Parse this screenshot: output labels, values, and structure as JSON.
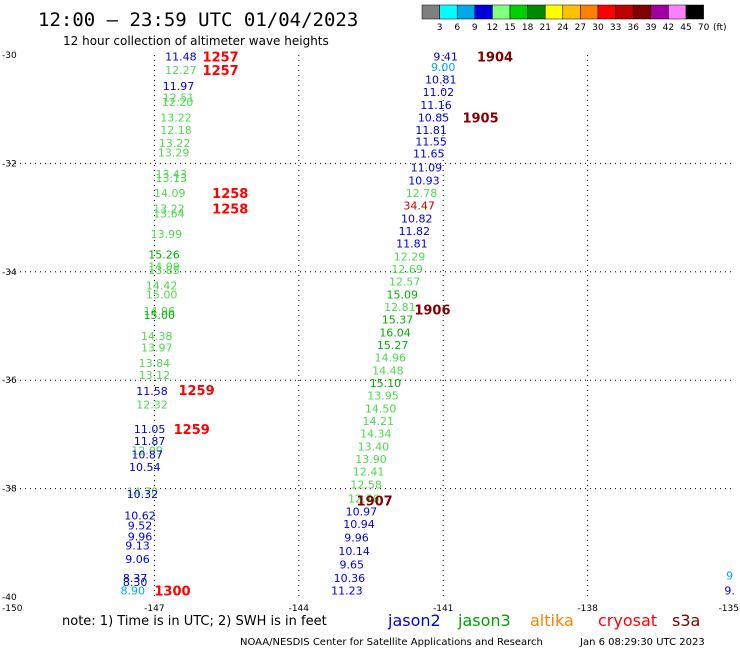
{
  "title": "12:00 — 23:59 UTC 01/04/2023",
  "subtitle": "12 hour collection of altimeter wave heights",
  "note": "note:  1) Time is in UTC; 2) SWH is in feet",
  "credit": "NOAA/NESDIS Center for Satellite Applications and Research",
  "timestamp": "Jan  6 08:29:30 UTC 2023",
  "colorscale": {
    "labels": [
      "3",
      "6",
      "9",
      "12",
      "15",
      "18",
      "21",
      "24",
      "27",
      "30",
      "33",
      "36",
      "39",
      "42",
      "45",
      "70"
    ],
    "unit": "(ft)",
    "colors": [
      "#7f7f7f",
      "#00ffff",
      "#00a8e8",
      "#0000d8",
      "#80ff80",
      "#00d000",
      "#008800",
      "#ffff00",
      "#ffc000",
      "#ff8000",
      "#ff0000",
      "#c00000",
      "#800000",
      "#a000a0",
      "#ff80ff",
      "#000000"
    ]
  },
  "satellites": [
    {
      "name": "jason2",
      "color": "#0000dd"
    },
    {
      "name": "jason3",
      "color": "#00a000"
    },
    {
      "name": "altika",
      "color": "#ff8000"
    },
    {
      "name": "cryosat",
      "color": "#ff0000"
    },
    {
      "name": "s3a",
      "color": "#800000"
    }
  ],
  "chart_data": {
    "type": "scatter",
    "x_ticks": [
      "-150",
      "-147",
      "-144",
      "-141",
      "-138",
      "-135"
    ],
    "y_ticks": [
      "-30",
      "-32",
      "-34",
      "-36",
      "-38",
      "-40"
    ],
    "xlim": [
      -150,
      -135
    ],
    "ylim": [
      -40,
      -30
    ],
    "grid": true,
    "time_labels": [
      {
        "text": "1257",
        "lon": -146.0,
        "lat": -30.03,
        "color": "#ff0000"
      },
      {
        "text": "1257",
        "lon": -146.0,
        "lat": -30.28,
        "color": "#ff0000"
      },
      {
        "text": "1258",
        "lon": -145.8,
        "lat": -32.55,
        "color": "#ff0000"
      },
      {
        "text": "1258",
        "lon": -145.8,
        "lat": -32.83,
        "color": "#ff0000"
      },
      {
        "text": "1259",
        "lon": -146.5,
        "lat": -36.18,
        "color": "#ff0000"
      },
      {
        "text": "1259",
        "lon": -146.6,
        "lat": -36.9,
        "color": "#ff0000"
      },
      {
        "text": "1300",
        "lon": -147.0,
        "lat": -39.88,
        "color": "#ff0000"
      },
      {
        "text": "1904",
        "lon": -140.3,
        "lat": -30.03,
        "color": "#800000"
      },
      {
        "text": "1905",
        "lon": -140.6,
        "lat": -31.15,
        "color": "#800000"
      },
      {
        "text": "1906",
        "lon": -141.6,
        "lat": -34.7,
        "color": "#800000"
      },
      {
        "text": "1907",
        "lon": -142.8,
        "lat": -38.22,
        "color": "#800000"
      }
    ],
    "series": [
      {
        "name": "track-1257",
        "points": [
          {
            "lon": -146.45,
            "lat": -30.03,
            "v": "11.48",
            "c": "#0000dd"
          },
          {
            "lon": -146.45,
            "lat": -30.28,
            "v": "12.27",
            "c": "#50d850"
          },
          {
            "lon": -146.5,
            "lat": -30.57,
            "v": "11.97",
            "c": "#0000dd"
          },
          {
            "lon": -146.5,
            "lat": -30.78,
            "v": "12.51",
            "c": "#50d850"
          },
          {
            "lon": -146.52,
            "lat": -30.87,
            "v": "12.20",
            "c": "#50d850"
          },
          {
            "lon": -146.55,
            "lat": -31.15,
            "v": "13.22",
            "c": "#50d850"
          },
          {
            "lon": -146.55,
            "lat": -31.38,
            "v": "12.18",
            "c": "#50d850"
          },
          {
            "lon": -146.58,
            "lat": -31.62,
            "v": "13.22",
            "c": "#50d850"
          },
          {
            "lon": -146.6,
            "lat": -31.8,
            "v": "13.29",
            "c": "#50d850"
          },
          {
            "lon": -146.65,
            "lat": -32.2,
            "v": "13.43",
            "c": "#50d850"
          },
          {
            "lon": -146.65,
            "lat": -32.27,
            "v": "13.13",
            "c": "#50d850"
          },
          {
            "lon": -146.68,
            "lat": -32.55,
            "v": "14.09",
            "c": "#50d850"
          },
          {
            "lon": -146.7,
            "lat": -32.83,
            "v": "13.22",
            "c": "#50d850"
          },
          {
            "lon": -146.7,
            "lat": -32.92,
            "v": "13.64",
            "c": "#50d850"
          },
          {
            "lon": -146.75,
            "lat": -33.3,
            "v": "13.99",
            "c": "#50d850"
          },
          {
            "lon": -146.8,
            "lat": -33.68,
            "v": "15.26",
            "c": "#00b000"
          },
          {
            "lon": -146.8,
            "lat": -33.9,
            "v": "14.09",
            "c": "#50d850"
          },
          {
            "lon": -146.8,
            "lat": -33.97,
            "v": "13.85",
            "c": "#50d850"
          },
          {
            "lon": -146.85,
            "lat": -34.25,
            "v": "14.42",
            "c": "#50d850"
          },
          {
            "lon": -146.85,
            "lat": -34.42,
            "v": "15.00",
            "c": "#50d850"
          },
          {
            "lon": -146.9,
            "lat": -34.72,
            "v": "14.96",
            "c": "#50d850"
          },
          {
            "lon": -146.9,
            "lat": -34.8,
            "v": "15.00",
            "c": "#00b000"
          },
          {
            "lon": -146.95,
            "lat": -35.18,
            "v": "14.38",
            "c": "#50d850"
          },
          {
            "lon": -146.95,
            "lat": -35.4,
            "v": "13.97",
            "c": "#50d850"
          },
          {
            "lon": -147.0,
            "lat": -35.68,
            "v": "13.84",
            "c": "#50d850"
          },
          {
            "lon": -147.0,
            "lat": -35.9,
            "v": "13.12",
            "c": "#50d850"
          },
          {
            "lon": -147.05,
            "lat": -36.2,
            "v": "11.58",
            "c": "#0000dd"
          },
          {
            "lon": -147.05,
            "lat": -36.45,
            "v": "12.32",
            "c": "#50d850"
          },
          {
            "lon": -147.1,
            "lat": -36.9,
            "v": "11.05",
            "c": "#0000dd"
          },
          {
            "lon": -147.1,
            "lat": -37.12,
            "v": "11.87",
            "c": "#0000dd"
          },
          {
            "lon": -147.15,
            "lat": -37.3,
            "v": "12.09",
            "c": "#50d850"
          },
          {
            "lon": -147.15,
            "lat": -37.37,
            "v": "10.87",
            "c": "#0000dd"
          },
          {
            "lon": -147.2,
            "lat": -37.6,
            "v": "10.54",
            "c": "#0000dd"
          },
          {
            "lon": -147.25,
            "lat": -38.05,
            "v": "14.70",
            "c": "#50d850"
          },
          {
            "lon": -147.25,
            "lat": -38.1,
            "v": "10.32",
            "c": "#0000dd"
          },
          {
            "lon": -147.3,
            "lat": -38.5,
            "v": "10.62",
            "c": "#0000dd"
          },
          {
            "lon": -147.3,
            "lat": -38.68,
            "v": "9.52",
            "c": "#0000dd"
          },
          {
            "lon": -147.3,
            "lat": -38.88,
            "v": "9.96",
            "c": "#0000dd"
          },
          {
            "lon": -147.35,
            "lat": -39.05,
            "v": "9.13",
            "c": "#0000dd"
          },
          {
            "lon": -147.35,
            "lat": -39.3,
            "v": "9.06",
            "c": "#0000dd"
          },
          {
            "lon": -147.4,
            "lat": -39.65,
            "v": "8.37",
            "c": "#0000dd"
          },
          {
            "lon": -147.4,
            "lat": -39.72,
            "v": "8.30",
            "c": "#0000dd"
          },
          {
            "lon": -147.45,
            "lat": -39.88,
            "v": "8.90",
            "c": "#00a8e8"
          }
        ]
      },
      {
        "name": "track-1904",
        "points": [
          {
            "lon": -140.95,
            "lat": -30.03,
            "v": "9.41",
            "c": "#0000dd"
          },
          {
            "lon": -141.0,
            "lat": -30.22,
            "v": "9.00",
            "c": "#00a8e8"
          },
          {
            "lon": -141.05,
            "lat": -30.45,
            "v": "10.81",
            "c": "#0000dd"
          },
          {
            "lon": -141.1,
            "lat": -30.68,
            "v": "11.02",
            "c": "#0000dd"
          },
          {
            "lon": -141.15,
            "lat": -30.92,
            "v": "11.16",
            "c": "#0000dd"
          },
          {
            "lon": -141.2,
            "lat": -31.15,
            "v": "10.85",
            "c": "#0000dd"
          },
          {
            "lon": -141.25,
            "lat": -31.38,
            "v": "11.81",
            "c": "#0000dd"
          },
          {
            "lon": -141.25,
            "lat": -31.6,
            "v": "11.55",
            "c": "#0000dd"
          },
          {
            "lon": -141.3,
            "lat": -31.82,
            "v": "11.65",
            "c": "#0000dd"
          },
          {
            "lon": -141.35,
            "lat": -32.08,
            "v": "11.09",
            "c": "#0000dd"
          },
          {
            "lon": -141.4,
            "lat": -32.32,
            "v": "10.93",
            "c": "#0000dd"
          },
          {
            "lon": -141.45,
            "lat": -32.55,
            "v": "12.78",
            "c": "#50d850"
          },
          {
            "lon": -141.5,
            "lat": -32.78,
            "v": "34.47",
            "c": "#c00000"
          },
          {
            "lon": -141.55,
            "lat": -33.02,
            "v": "10.82",
            "c": "#0000dd"
          },
          {
            "lon": -141.6,
            "lat": -33.25,
            "v": "11.82",
            "c": "#0000dd"
          },
          {
            "lon": -141.65,
            "lat": -33.48,
            "v": "11.81",
            "c": "#0000dd"
          },
          {
            "lon": -141.7,
            "lat": -33.72,
            "v": "12.29",
            "c": "#50d850"
          },
          {
            "lon": -141.75,
            "lat": -33.95,
            "v": "12.69",
            "c": "#50d850"
          },
          {
            "lon": -141.8,
            "lat": -34.18,
            "v": "12.57",
            "c": "#50d850"
          },
          {
            "lon": -141.85,
            "lat": -34.42,
            "v": "15.09",
            "c": "#00b000"
          },
          {
            "lon": -141.9,
            "lat": -34.65,
            "v": "12.81",
            "c": "#50d850"
          },
          {
            "lon": -141.95,
            "lat": -34.88,
            "v": "15.37",
            "c": "#00b000"
          },
          {
            "lon": -142.0,
            "lat": -35.12,
            "v": "16.04",
            "c": "#00b000"
          },
          {
            "lon": -142.05,
            "lat": -35.35,
            "v": "15.27",
            "c": "#00b000"
          },
          {
            "lon": -142.1,
            "lat": -35.58,
            "v": "14.96",
            "c": "#50d850"
          },
          {
            "lon": -142.15,
            "lat": -35.82,
            "v": "14.48",
            "c": "#50d850"
          },
          {
            "lon": -142.2,
            "lat": -36.05,
            "v": "15.10",
            "c": "#00b000"
          },
          {
            "lon": -142.25,
            "lat": -36.28,
            "v": "13.95",
            "c": "#50d850"
          },
          {
            "lon": -142.3,
            "lat": -36.52,
            "v": "14.50",
            "c": "#50d850"
          },
          {
            "lon": -142.35,
            "lat": -36.75,
            "v": "14.21",
            "c": "#50d850"
          },
          {
            "lon": -142.4,
            "lat": -36.98,
            "v": "14.34",
            "c": "#50d850"
          },
          {
            "lon": -142.45,
            "lat": -37.22,
            "v": "13.40",
            "c": "#50d850"
          },
          {
            "lon": -142.5,
            "lat": -37.45,
            "v": "13.90",
            "c": "#50d850"
          },
          {
            "lon": -142.55,
            "lat": -37.68,
            "v": "12.41",
            "c": "#50d850"
          },
          {
            "lon": -142.6,
            "lat": -37.92,
            "v": "12.58",
            "c": "#50d850"
          },
          {
            "lon": -142.65,
            "lat": -38.18,
            "v": "12.76",
            "c": "#50d850"
          },
          {
            "lon": -142.7,
            "lat": -38.42,
            "v": "10.97",
            "c": "#0000dd"
          },
          {
            "lon": -142.75,
            "lat": -38.65,
            "v": "10.94",
            "c": "#0000dd"
          },
          {
            "lon": -142.8,
            "lat": -38.9,
            "v": "9.96",
            "c": "#0000dd"
          },
          {
            "lon": -142.85,
            "lat": -39.15,
            "v": "10.14",
            "c": "#0000dd"
          },
          {
            "lon": -142.9,
            "lat": -39.4,
            "v": "9.65",
            "c": "#0000dd"
          },
          {
            "lon": -142.95,
            "lat": -39.65,
            "v": "10.36",
            "c": "#0000dd"
          },
          {
            "lon": -143.0,
            "lat": -39.88,
            "v": "11.23",
            "c": "#0000dd"
          }
        ]
      },
      {
        "name": "track-edge",
        "points": [
          {
            "lon": -135.05,
            "lat": -39.6,
            "v": "9",
            "c": "#00a8e8"
          },
          {
            "lon": -135.05,
            "lat": -39.88,
            "v": "9.",
            "c": "#0000dd"
          }
        ]
      }
    ]
  }
}
